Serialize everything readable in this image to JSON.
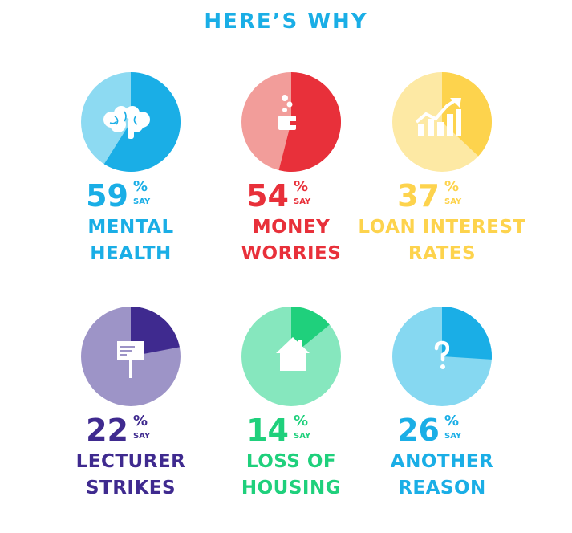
{
  "title": "HERE’S WHY",
  "colors": {
    "title": "#1aaee6",
    "mental": {
      "main": "#1aaee6",
      "rest": "#8ddaf2",
      "text": "#1aaee6"
    },
    "money": {
      "main": "#e8303a",
      "rest": "#f29d9a",
      "text": "#e8303a"
    },
    "loan": {
      "main": "#fdd34d",
      "rest": "#fde9a4",
      "text": "#fdd34d"
    },
    "lecturer": {
      "main": "#3f2a8f",
      "rest": "#9d94c7",
      "text": "#3f2a8f"
    },
    "housing": {
      "main": "#1fd07c",
      "rest": "#86e7be",
      "text": "#1fd07c"
    },
    "another": {
      "main": "#1aaee6",
      "rest": "#86d8f1",
      "text": "#1aaee6"
    }
  },
  "icons": [
    "brain-icon",
    "wallet-coins-icon",
    "chart-arrow-icon",
    "placard-icon",
    "house-icon",
    "question-icon"
  ],
  "percent_sign": "%",
  "say_label": "SAY",
  "chart_data": {
    "type": "pie",
    "title": "HERE’S WHY",
    "unit": "%",
    "items": [
      {
        "key": "mental",
        "value": 59,
        "pct": "59",
        "line1": "MENTAL",
        "line2": "HEALTH"
      },
      {
        "key": "money",
        "value": 54,
        "pct": "54",
        "line1": "MONEY",
        "line2": "WORRIES"
      },
      {
        "key": "loan",
        "value": 37,
        "pct": "37",
        "line1": "LOAN INTEREST",
        "line2": "RATES"
      },
      {
        "key": "lecturer",
        "value": 22,
        "pct": "22",
        "line1": "LECTURER",
        "line2": "STRIKES"
      },
      {
        "key": "housing",
        "value": 14,
        "pct": "14",
        "line1": "LOSS OF",
        "line2": "HOUSING"
      },
      {
        "key": "another",
        "value": 26,
        "pct": "26",
        "line1": "ANOTHER",
        "line2": "REASON"
      }
    ]
  }
}
